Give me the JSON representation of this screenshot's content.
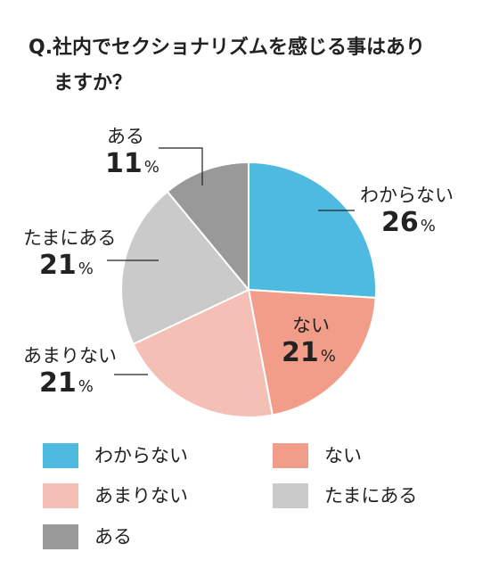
{
  "title": {
    "line1": "Q.社内でセクショナリズムを感じる事はあり",
    "line2": "ますか？"
  },
  "chart_data": {
    "type": "pie",
    "unit": "%",
    "slices": [
      {
        "label": "わからない",
        "value": 26,
        "color": "#4ebadf"
      },
      {
        "label": "ない",
        "value": 21,
        "color": "#f29d8a"
      },
      {
        "label": "あまりない",
        "value": 21,
        "color": "#f4bfb5"
      },
      {
        "label": "たまにある",
        "value": 21,
        "color": "#cacaca"
      },
      {
        "label": "ある",
        "value": 11,
        "color": "#999999"
      }
    ],
    "start": "12 o'clock",
    "direction": "clockwise",
    "legend_position": "bottom"
  }
}
